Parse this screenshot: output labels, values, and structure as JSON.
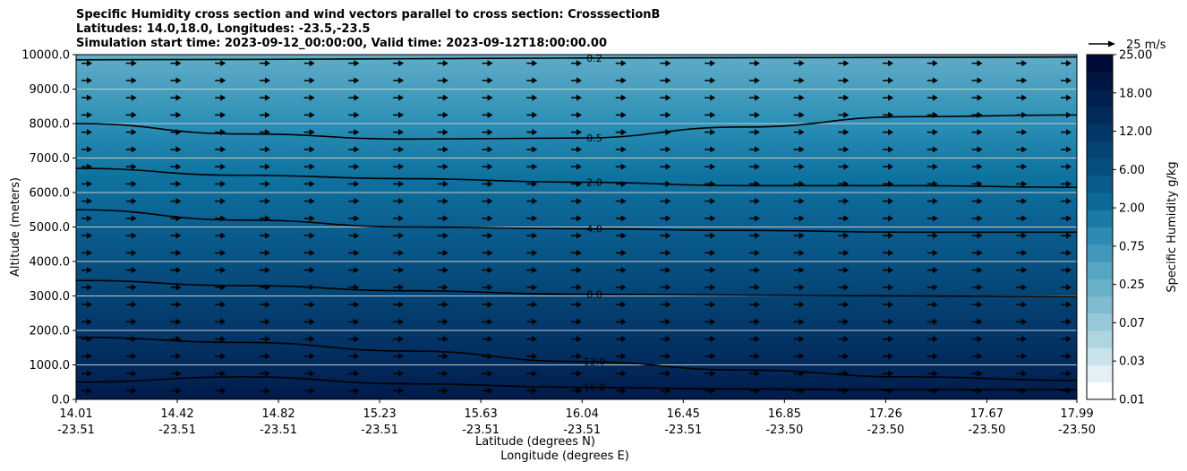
{
  "chart_data": {
    "type": "contour",
    "title_lines": [
      "Specific Humidity cross section and wind vectors parallel to cross section: CrosssectionB",
      "Latitudes: 14.0,18.0, Longitudes: -23.5,-23.5",
      "Simulation start time: 2023-09-12_00:00:00, Valid time: 2023-09-12T18:00:00.00"
    ],
    "ylabel": "Altitude (meters)",
    "xlabel_lat": "Latitude (degrees N)",
    "xlabel_lon": "Longitude (degrees E)",
    "ylim": [
      0,
      10000
    ],
    "y_ticks": [
      "0.0",
      "1000.0",
      "2000.0",
      "3000.0",
      "4000.0",
      "5000.0",
      "6000.0",
      "7000.0",
      "8000.0",
      "9000.0",
      "10000.0"
    ],
    "x_ticks_lat": [
      "14.01",
      "14.42",
      "14.82",
      "15.23",
      "15.63",
      "16.04",
      "16.45",
      "16.85",
      "17.26",
      "17.67",
      "17.99"
    ],
    "x_ticks_lon": [
      "-23.51",
      "-23.51",
      "-23.51",
      "-23.51",
      "-23.51",
      "-23.51",
      "-23.51",
      "-23.50",
      "-23.50",
      "-23.50",
      "-23.50"
    ],
    "x_tick_fractions": [
      0,
      0.1011,
      0.2022,
      0.3033,
      0.4044,
      0.5056,
      0.6067,
      0.7078,
      0.8089,
      0.91,
      1.0
    ],
    "colorbar": {
      "label": "Specific Humidity g/kg",
      "tick_labels": [
        "0.01",
        "0.03",
        "0.07",
        "0.25",
        "0.75",
        "2.00",
        "6.00",
        "12.00",
        "18.00",
        "25.00"
      ],
      "colors": [
        "#ffffff",
        "#e4f0f3",
        "#c9e3ea",
        "#afd5e1",
        "#97c8d8",
        "#80bbd0",
        "#6ab0c9",
        "#56a5c2",
        "#4298bb",
        "#2e8ab2",
        "#1b7aa6",
        "#0d6a98",
        "#075c8c",
        "#054f80",
        "#044373",
        "#033767",
        "#022b5a",
        "#01204e",
        "#011542",
        "#000c36"
      ]
    },
    "wind_reference": {
      "label": "25 m/s"
    },
    "contours": [
      {
        "label": "0.2",
        "altitudes_m": [
          9850,
          9860,
          9880,
          9900,
          9910,
          9920,
          9930
        ]
      },
      {
        "label": "0.5",
        "altitudes_m": [
          8000,
          7700,
          7550,
          7580,
          7900,
          8200,
          8250
        ]
      },
      {
        "label": "2.0",
        "altitudes_m": [
          6700,
          6500,
          6400,
          6300,
          6200,
          6200,
          6150
        ]
      },
      {
        "label": "4.0",
        "altitudes_m": [
          5500,
          5200,
          5000,
          4950,
          4900,
          4850,
          4850
        ]
      },
      {
        "label": "8.0",
        "altitudes_m": [
          3450,
          3300,
          3150,
          3050,
          3020,
          3000,
          2980
        ]
      },
      {
        "label": "12.0",
        "altitudes_m": [
          1800,
          1650,
          1400,
          1100,
          850,
          650,
          550
        ]
      },
      {
        "label": "16.0",
        "altitudes_m": [
          500,
          650,
          450,
          350,
          300,
          280,
          280
        ]
      }
    ],
    "wind_vectors": {
      "direction": "parallel",
      "u_ms": 20,
      "rows": 20,
      "cols": 23
    }
  }
}
